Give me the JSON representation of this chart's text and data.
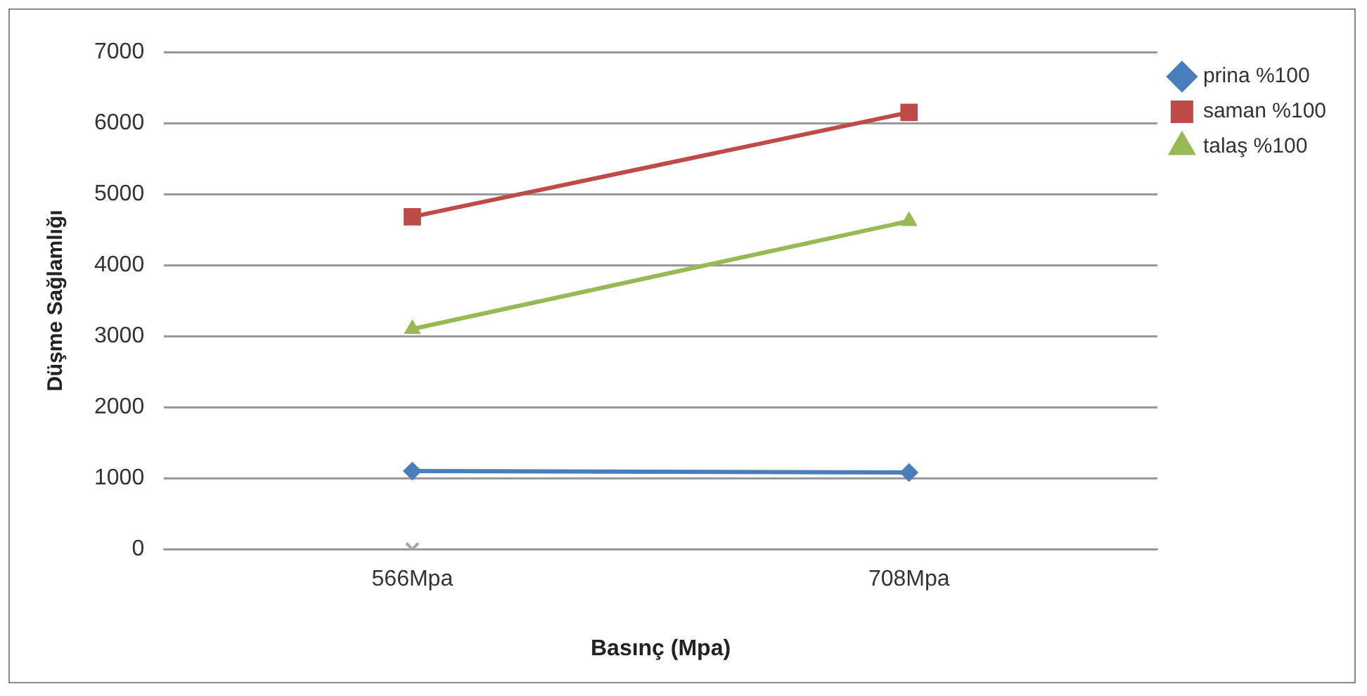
{
  "chart_data": {
    "type": "line",
    "xlabel": "Basınç (Mpa)",
    "ylabel": "Düşme Sağlamlığı",
    "categories": [
      "566Mpa",
      "708Mpa"
    ],
    "series": [
      {
        "name": "prina %100",
        "color": "#4a7ebb",
        "marker": "diamond",
        "values": [
          1100,
          1080
        ]
      },
      {
        "name": "saman %100",
        "color": "#be4b48",
        "marker": "square",
        "values": [
          4680,
          6150
        ]
      },
      {
        "name": "talaş %100",
        "color": "#98b954",
        "marker": "triangle",
        "values": [
          3100,
          4620
        ]
      },
      {
        "type": "scatter",
        "color": "#a6a6a6",
        "marker": "cross",
        "values": [
          0,
          null
        ]
      }
    ],
    "ylim": [
      0,
      7000
    ],
    "yticks": [
      0,
      1000,
      2000,
      3000,
      4000,
      5000,
      6000,
      7000
    ],
    "grid": "y",
    "legend": "right"
  }
}
